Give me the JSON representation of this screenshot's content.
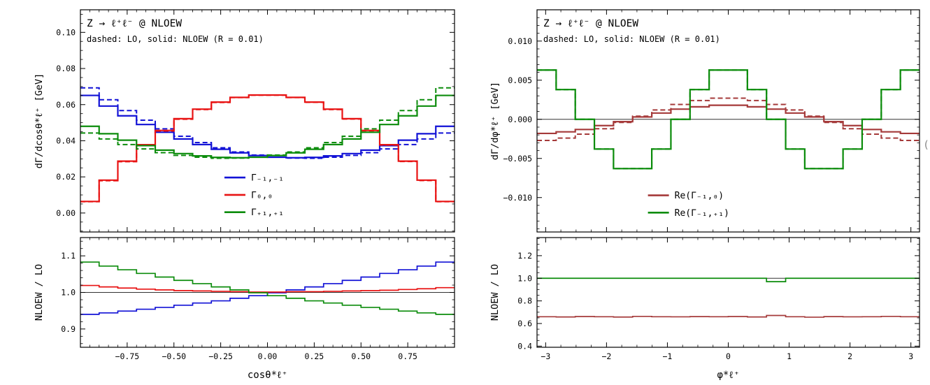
{
  "page": {
    "background": "#ffffff",
    "edge_glyph": "("
  },
  "chart_data": [
    {
      "type": "step-histogram",
      "panel": "left",
      "title": "Z → ℓ⁺ℓ⁻ @ NLOEW",
      "subtitle": "dashed: LO, solid: NLOEW (R = 0.01)",
      "xlabel": "cosθ*ℓ⁺",
      "ylabel": "dΓ/dcosθ*ℓ⁺ [GeV]",
      "ratio_ylabel": "NLOEW / LO",
      "xlim": [
        -1,
        1
      ],
      "xticks": {
        "values": [
          -0.75,
          -0.5,
          -0.25,
          0,
          0.25,
          0.5,
          0.75
        ],
        "labels": [
          "−0.75",
          "−0.50",
          "−0.25",
          "0.00",
          "0.25",
          "0.50",
          "0.75"
        ],
        "minor_step": 0.05
      },
      "top": {
        "ylim": [
          -0.0105,
          0.1125
        ],
        "ticks": [
          0,
          0.02,
          0.04,
          0.06,
          0.08,
          0.1
        ],
        "labels": [
          "0.00",
          "0.02",
          "0.04",
          "0.06",
          "0.08",
          "0.10"
        ],
        "minor_step": 0.005,
        "refline": null
      },
      "bottom": {
        "ylim": [
          0.85,
          1.15
        ],
        "ticks": [
          0.9,
          1.0,
          1.1
        ],
        "labels": [
          "0.9",
          "1.0",
          "1.1"
        ],
        "minor_step": 0.02,
        "refline": 1.0
      },
      "bin_edges": [
        -1,
        -0.9,
        -0.8,
        -0.7,
        -0.6,
        -0.5,
        -0.4,
        -0.3,
        -0.2,
        -0.1,
        0,
        0.1,
        0.2,
        0.3,
        0.4,
        0.5,
        0.6,
        0.7,
        0.8,
        0.9,
        1
      ],
      "legend": {
        "fx": 0.385,
        "fy": 0.755,
        "dy": 0.078
      },
      "series": [
        {
          "name": "gamma-m1-m1",
          "label": "Γ₋₁,₋₁",
          "color": "#1212d6",
          "nlo": [
            0.0651,
            0.0592,
            0.0538,
            0.049,
            0.0447,
            0.041,
            0.0379,
            0.0353,
            0.0333,
            0.0318,
            0.0309,
            0.0306,
            0.0308,
            0.0316,
            0.0329,
            0.0348,
            0.0373,
            0.0403,
            0.0439,
            0.048
          ],
          "lo": [
            0.0693,
            0.0627,
            0.0567,
            0.0514,
            0.0466,
            0.0425,
            0.039,
            0.0361,
            0.0338,
            0.0321,
            0.0309,
            0.0304,
            0.0303,
            0.0309,
            0.0319,
            0.0334,
            0.0355,
            0.0379,
            0.041,
            0.0443
          ],
          "ratio": [
            0.94,
            0.944,
            0.949,
            0.954,
            0.959,
            0.965,
            0.971,
            0.977,
            0.984,
            0.991,
            0.999,
            1.007,
            1.015,
            1.024,
            1.033,
            1.042,
            1.052,
            1.062,
            1.072,
            1.083
          ]
        },
        {
          "name": "gamma-0-0",
          "label": "Γ₀,₀",
          "color": "#e81313",
          "nlo": [
            0.0064,
            0.0182,
            0.0287,
            0.0378,
            0.0457,
            0.0522,
            0.0575,
            0.0614,
            0.064,
            0.0653,
            0.0653,
            0.064,
            0.0614,
            0.0575,
            0.0522,
            0.0457,
            0.0378,
            0.0287,
            0.0182,
            0.0064
          ],
          "lo": [
            0.0063,
            0.0179,
            0.0284,
            0.0375,
            0.0454,
            0.0519,
            0.0573,
            0.0612,
            0.0639,
            0.0652,
            0.0652,
            0.0639,
            0.0613,
            0.0573,
            0.052,
            0.0455,
            0.0376,
            0.0285,
            0.018,
            0.0063
          ],
          "ratio": [
            1.019,
            1.015,
            1.012,
            1.009,
            1.007,
            1.005,
            1.004,
            1.003,
            1.002,
            1.001,
            1.001,
            1.002,
            1.002,
            1.003,
            1.004,
            1.005,
            1.006,
            1.008,
            1.01,
            1.013
          ]
        },
        {
          "name": "gamma-p1-p1",
          "label": "Γ₊₁,₊₁",
          "color": "#0c8c0c",
          "nlo": [
            0.048,
            0.0439,
            0.0403,
            0.0373,
            0.0348,
            0.0329,
            0.0316,
            0.0308,
            0.0306,
            0.0309,
            0.0318,
            0.0333,
            0.0353,
            0.0379,
            0.041,
            0.0447,
            0.049,
            0.0538,
            0.0592,
            0.0651
          ],
          "lo": [
            0.0443,
            0.041,
            0.0379,
            0.0355,
            0.0334,
            0.0319,
            0.0309,
            0.0303,
            0.0304,
            0.0309,
            0.0321,
            0.0338,
            0.0361,
            0.039,
            0.0425,
            0.0466,
            0.0514,
            0.0567,
            0.0627,
            0.0693
          ],
          "ratio": [
            1.083,
            1.072,
            1.062,
            1.052,
            1.042,
            1.033,
            1.024,
            1.015,
            1.007,
            0.999,
            0.991,
            0.984,
            0.977,
            0.971,
            0.965,
            0.959,
            0.954,
            0.949,
            0.944,
            0.94
          ]
        }
      ]
    },
    {
      "type": "step-histogram",
      "panel": "right",
      "title": "Z → ℓ⁺ℓ⁻ @ NLOEW",
      "subtitle": "dashed: LO, solid: NLOEW (R = 0.01)",
      "xlabel": "φ*ℓ⁺",
      "ylabel": "dΓ/dφ*ℓ⁺ [GeV]",
      "ratio_ylabel": "NLOEW / LO",
      "xlim": [
        -3.1416,
        3.1416
      ],
      "xticks": {
        "values": [
          -3,
          -2,
          -1,
          0,
          1,
          2,
          3
        ],
        "labels": [
          "−3",
          "−2",
          "−1",
          "0",
          "1",
          "2",
          "3"
        ],
        "minor_step": 0.25
      },
      "top": {
        "ylim": [
          -0.0144,
          0.014
        ],
        "ticks": [
          -0.01,
          -0.005,
          0,
          0.005,
          0.01
        ],
        "labels": [
          "−0.010",
          "−0.005",
          "0.000",
          "0.005",
          "0.010"
        ],
        "minor_step": 0.001,
        "refline": 0.0
      },
      "bottom": {
        "ylim": [
          0.39,
          1.36
        ],
        "ticks": [
          0.4,
          0.6,
          0.8,
          1.0,
          1.2
        ],
        "labels": [
          "0.4",
          "0.6",
          "0.8",
          "1.0",
          "1.2"
        ],
        "minor_step": 0.05,
        "refline": 1.0
      },
      "bin_edges": [
        -3.1416,
        -2.8274,
        -2.5133,
        -2.1991,
        -1.885,
        -1.5708,
        -1.2566,
        -0.9425,
        -0.6283,
        -0.3142,
        0,
        0.3142,
        0.6283,
        0.9425,
        1.2566,
        1.5708,
        1.885,
        2.1991,
        2.5133,
        2.8274,
        3.1416
      ],
      "legend": {
        "fx": 0.29,
        "fy": 0.835,
        "dy": 0.078
      },
      "series": [
        {
          "name": "re-gamma-m1-0",
          "label": "Re(Γ₋₁,₀)",
          "color": "#a53a3a",
          "nlo": [
            -0.0018,
            -0.0016,
            -0.0013,
            -0.0008,
            -0.0003,
            0.0003,
            0.0008,
            0.0013,
            0.0016,
            0.0018,
            0.0018,
            0.0016,
            0.0013,
            0.0008,
            0.0003,
            -0.0003,
            -0.0008,
            -0.0013,
            -0.0016,
            -0.0018
          ],
          "lo": [
            -0.0027,
            -0.0024,
            -0.0019,
            -0.0012,
            -0.0004,
            0.0004,
            0.0012,
            0.0019,
            0.0024,
            0.0027,
            0.0027,
            0.0024,
            0.0019,
            0.0012,
            0.0004,
            -0.0004,
            -0.0012,
            -0.0019,
            -0.0024,
            -0.0027
          ],
          "ratio": [
            0.66,
            0.658,
            0.662,
            0.66,
            0.657,
            0.663,
            0.66,
            0.659,
            0.661,
            0.66,
            0.662,
            0.658,
            0.671,
            0.66,
            0.656,
            0.661,
            0.659,
            0.66,
            0.663,
            0.66
          ]
        },
        {
          "name": "re-gamma-m1-p1",
          "label": "Re(Γ₋₁,₊₁)",
          "color": "#0c8c0c",
          "nlo": [
            0.0063,
            0.0038,
            0.0,
            -0.0038,
            -0.0063,
            -0.0063,
            -0.0038,
            0.0,
            0.0038,
            0.0063,
            0.0063,
            0.0038,
            0.0,
            -0.0038,
            -0.0063,
            -0.0063,
            -0.0038,
            0.0,
            0.0038,
            0.0063
          ],
          "lo": [
            0.0063,
            0.0038,
            0.0,
            -0.0038,
            -0.0063,
            -0.0063,
            -0.0038,
            0.0,
            0.0038,
            0.0063,
            0.0063,
            0.0038,
            0.0,
            -0.0038,
            -0.0063,
            -0.0063,
            -0.0038,
            0.0,
            0.0038,
            0.0063
          ],
          "ratio": [
            1.0,
            1.0,
            1.0,
            1.0,
            1.0,
            1.0,
            1.0,
            1.0,
            1.0,
            1.0,
            1.0,
            1.0,
            0.97,
            1.0,
            1.0,
            1.0,
            1.0,
            1.0,
            1.0,
            1.0
          ]
        }
      ]
    }
  ]
}
